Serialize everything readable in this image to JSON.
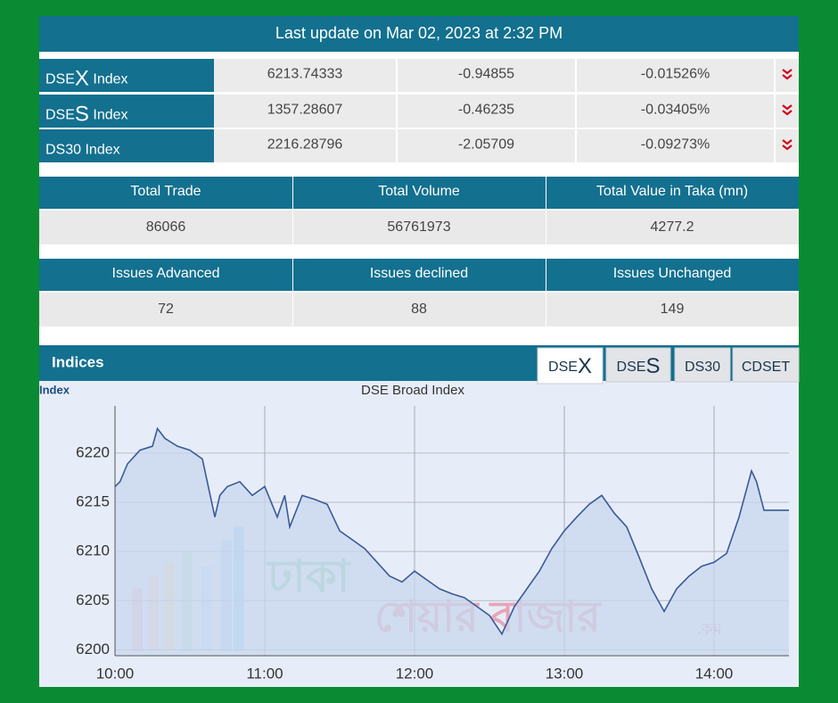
{
  "header": {
    "text": "Last update on Mar 02, 2023 at 2:32 PM"
  },
  "indices": [
    {
      "label": [
        {
          "text": "DSE"
        },
        {
          "text": "X",
          "big": true
        },
        {
          "text": " Index"
        }
      ],
      "value": "6213.74333",
      "change": "-0.94855",
      "percent": "-0.01526%"
    },
    {
      "label": [
        {
          "text": "DSE"
        },
        {
          "text": "S",
          "big": true
        },
        {
          "text": " Index"
        }
      ],
      "value": "1357.28607",
      "change": "-0.46235",
      "percent": "-0.03405%"
    },
    {
      "label": [
        {
          "text": "DS30 Index"
        }
      ],
      "value": "2216.28796",
      "change": "-2.05709",
      "percent": "-0.09273%"
    }
  ],
  "summary_tables": [
    {
      "headers": [
        "Total Trade",
        "Total Volume",
        "Total Value in Taka (mn)"
      ],
      "values": [
        "86066",
        "56761973",
        "4277.2"
      ]
    },
    {
      "headers": [
        "Issues Advanced",
        "Issues declined",
        "Issues Unchanged"
      ],
      "values": [
        "72",
        "88",
        "149"
      ]
    }
  ],
  "section": {
    "title": "Indices",
    "active_tab": 0,
    "tabs": [
      {
        "label": [
          {
            "text": "DSE"
          },
          {
            "text": "X",
            "big": true
          }
        ]
      },
      {
        "label": [
          {
            "text": "DSE"
          },
          {
            "text": "S",
            "big": true
          }
        ]
      },
      {
        "label": [
          {
            "text": "DS30"
          }
        ]
      },
      {
        "label": [
          {
            "text": "CDSET"
          }
        ]
      }
    ]
  },
  "watermark": [
    "ঢাকা",
    "শেয়ার বাজার",
    ".কম"
  ],
  "chart_data": {
    "type": "line",
    "title": "DSE Broad Index",
    "ylabel": "Index",
    "color": "#3a5a98",
    "fill_color": "#c8d7ef",
    "grid": true,
    "x": [
      "10:00",
      "10:02",
      "10:05",
      "10:10",
      "10:15",
      "10:17",
      "10:20",
      "10:25",
      "10:30",
      "10:35",
      "10:40",
      "10:42",
      "10:45",
      "10:50",
      "10:55",
      "11:00",
      "11:05",
      "11:08",
      "11:10",
      "11:15",
      "11:20",
      "11:25",
      "11:30",
      "11:35",
      "11:40",
      "11:45",
      "11:50",
      "11:55",
      "12:00",
      "12:05",
      "12:10",
      "12:15",
      "12:20",
      "12:25",
      "12:30",
      "12:35",
      "12:40",
      "12:45",
      "12:50",
      "12:55",
      "13:00",
      "13:05",
      "13:10",
      "13:15",
      "13:20",
      "13:25",
      "13:30",
      "13:35",
      "13:40",
      "13:45",
      "13:50",
      "13:55",
      "14:00",
      "14:05",
      "14:10",
      "14:15",
      "14:17",
      "14:20",
      "14:25",
      "14:30"
    ],
    "values": [
      6216.6,
      6217.1,
      6218.9,
      6220.3,
      6220.7,
      6222.5,
      6221.5,
      6220.7,
      6220.3,
      6219.4,
      6213.5,
      6215.7,
      6216.6,
      6217.1,
      6215.7,
      6216.6,
      6213.5,
      6215.7,
      6212.5,
      6215.7,
      6215.3,
      6214.8,
      6212.1,
      6211.2,
      6210.3,
      6208.9,
      6207.5,
      6206.9,
      6208.0,
      6207.1,
      6206.2,
      6205.7,
      6205.3,
      6204.4,
      6203.5,
      6201.6,
      6204.4,
      6206.2,
      6208.0,
      6210.3,
      6212.1,
      6213.5,
      6214.8,
      6215.7,
      6213.9,
      6212.5,
      6209.4,
      6206.2,
      6203.9,
      6206.2,
      6207.5,
      6208.5,
      6208.9,
      6209.8,
      6213.5,
      6218.2,
      6217.1,
      6214.2,
      6214.2,
      6214.2
    ],
    "xlim": [
      "10:00",
      "14:30"
    ],
    "xticks": [
      "10:00",
      "11:00",
      "12:00",
      "13:00",
      "14:00"
    ],
    "ylim": [
      6199.4,
      6224.8
    ],
    "yticks": [
      6200,
      6205,
      6210,
      6215,
      6220
    ]
  }
}
